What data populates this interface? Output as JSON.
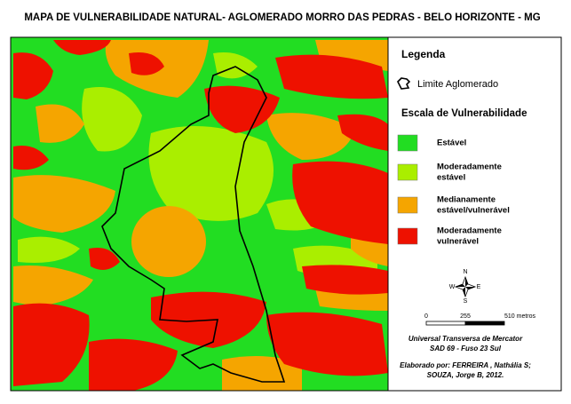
{
  "header": {
    "title": "MAPA DE VULNERABILIDADE NATURAL- AGLOMERADO MORRO DAS PEDRAS - BELO HORIZONTE - MG"
  },
  "legend": {
    "title": "Legenda",
    "boundary": "Limite Aglomerado",
    "scale_title": "Escala de Vulnerabilidade",
    "classes": [
      {
        "lines": [
          "Estável"
        ],
        "color": "#22dd22"
      },
      {
        "lines": [
          "Moderadamente",
          "estável"
        ],
        "color": "#aaee00"
      },
      {
        "lines": [
          "Medianamente",
          "estável/vulnerável"
        ],
        "color": "#f5a500"
      },
      {
        "lines": [
          "Moderadamente",
          "vulnerável"
        ],
        "color": "#ee1100"
      }
    ]
  },
  "compass": {
    "n": "N",
    "s": "S",
    "w": "W",
    "e": "E"
  },
  "scale_bar": {
    "labels": [
      "0",
      "255",
      "510 metros"
    ]
  },
  "projection": [
    "Universal Transversa de Mercator",
    "SAD 69 - Fuso 23 Sul"
  ],
  "credits": [
    "Elaborado por: FERREIRA , Nathália S;",
    "SOUZA, Jorge B, 2012."
  ]
}
